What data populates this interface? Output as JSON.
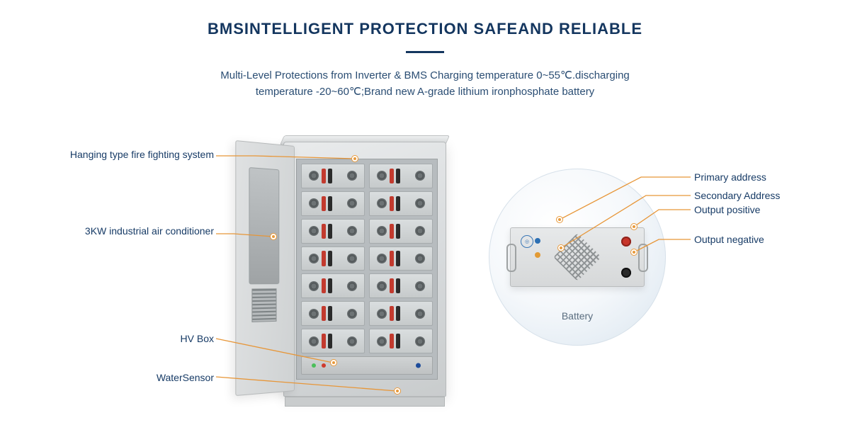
{
  "title": "BMSINTELLIGENT PROTECTION SAFEAND RELIABLE",
  "title_color": "#14365f",
  "title_fontsize": 22,
  "underline_color": "#14365f",
  "subtitle_line1": "Multi-Level Protections from Inverter & BMS Charging temperature 0~55℃.discharging",
  "subtitle_line2": "temperature -20~60℃;Brand new A-grade lithium ironphosphate battery",
  "subtitle_color": "#2a4d73",
  "subtitle_fontsize": 15,
  "left_callouts": {
    "fire": "Hanging type fire fighting system",
    "ac": "3KW industrial air conditioner",
    "hv": "HV Box",
    "water": "WaterSensor"
  },
  "right_callouts": {
    "primary": "Primary address",
    "secondary": "Secondary Address",
    "outpos": "Output positive",
    "outneg": "Output negative"
  },
  "detail_label": "Battery",
  "colors": {
    "lead": "#e79638",
    "dot_border": "#e89a3c",
    "cabinet_edge": "#b7babb",
    "term_pos": "#c7352a",
    "term_neg": "#2a2a2a",
    "label_text": "#173b66",
    "detail_bg_outer": "#ccd9e5"
  },
  "cabinet": {
    "module_rows": 7,
    "modules_per_row": 2
  }
}
